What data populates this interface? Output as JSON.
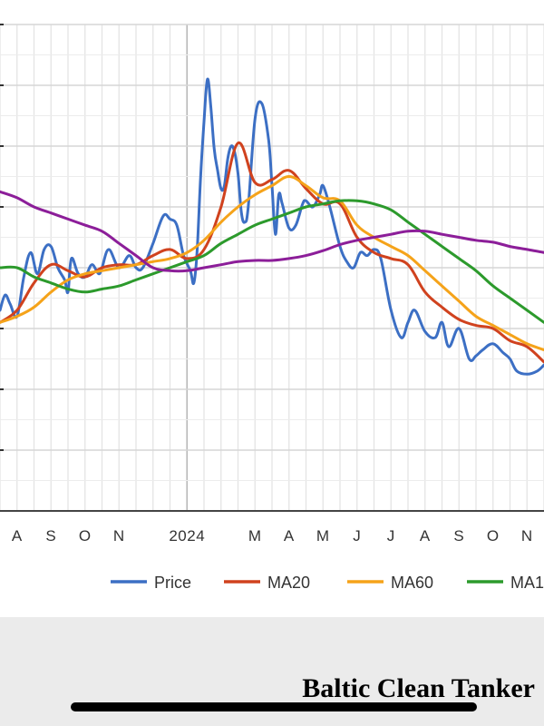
{
  "chart_data": {
    "type": "line",
    "title": "Baltic Clean Tanker",
    "x_tick_labels": [
      "A",
      "S",
      "O",
      "N",
      "2024",
      "M",
      "A",
      "M",
      "J",
      "J",
      "A",
      "S",
      "O",
      "N"
    ],
    "x_tick_positions": [
      1.5,
      2.5,
      3.5,
      4.5,
      6.5,
      8.5,
      9.5,
      10.5,
      11.5,
      12.5,
      13.5,
      14.5,
      15.5,
      16.5
    ],
    "xlim": [
      1.0,
      17.0
    ],
    "ylim": [
      0,
      8
    ],
    "grid": true,
    "legend_position": "bottom",
    "series": [
      {
        "name": "Price",
        "color": "#3c6fc4",
        "x": [
          1.0,
          1.15,
          1.3,
          1.5,
          1.7,
          1.9,
          2.1,
          2.3,
          2.5,
          2.7,
          2.9,
          3.0,
          3.1,
          3.3,
          3.5,
          3.7,
          3.9,
          4.0,
          4.2,
          4.5,
          4.8,
          5.0,
          5.2,
          5.5,
          5.8,
          6.0,
          6.2,
          6.4,
          6.6,
          6.7,
          6.8,
          6.9,
          7.0,
          7.1,
          7.2,
          7.3,
          7.4,
          7.5,
          7.6,
          7.7,
          7.8,
          7.9,
          8.0,
          8.1,
          8.2,
          8.3,
          8.5,
          8.7,
          8.9,
          9.0,
          9.1,
          9.2,
          9.3,
          9.5,
          9.7,
          9.9,
          10.0,
          10.2,
          10.4,
          10.5,
          10.7,
          11.0,
          11.2,
          11.4,
          11.6,
          11.8,
          12.0,
          12.2,
          12.5,
          12.8,
          13.0,
          13.2,
          13.5,
          13.8,
          14.0,
          14.2,
          14.5,
          14.8,
          15.0,
          15.2,
          15.5,
          15.8,
          16.0,
          16.2,
          16.5,
          16.8,
          17.0
        ],
        "values": [
          3.3,
          3.55,
          3.4,
          3.2,
          3.85,
          4.25,
          3.9,
          4.3,
          4.35,
          4.0,
          3.8,
          3.6,
          4.15,
          3.9,
          3.85,
          4.05,
          3.9,
          4.0,
          4.3,
          4.0,
          4.2,
          4.0,
          4.0,
          4.4,
          4.85,
          4.8,
          4.7,
          4.2,
          3.95,
          3.75,
          4.3,
          5.5,
          6.4,
          7.1,
          6.65,
          5.95,
          5.6,
          5.3,
          5.35,
          5.8,
          6.0,
          5.9,
          5.55,
          4.9,
          4.75,
          5.0,
          6.45,
          6.7,
          6.1,
          5.35,
          4.55,
          5.2,
          5.05,
          4.65,
          4.7,
          5.05,
          5.1,
          5.0,
          5.2,
          5.35,
          5.0,
          4.35,
          4.1,
          4.0,
          4.25,
          4.2,
          4.3,
          4.15,
          3.3,
          2.85,
          3.1,
          3.3,
          2.95,
          2.85,
          3.1,
          2.7,
          3.0,
          2.5,
          2.55,
          2.65,
          2.75,
          2.6,
          2.5,
          2.3,
          2.25,
          2.3,
          2.4
        ]
      },
      {
        "name": "MA20",
        "color": "#d0421e",
        "x": [
          1.0,
          1.5,
          2.0,
          2.5,
          3.0,
          3.5,
          4.0,
          4.5,
          5.0,
          5.5,
          6.0,
          6.5,
          7.0,
          7.5,
          8.0,
          8.5,
          9.0,
          9.5,
          10.0,
          10.5,
          11.0,
          11.5,
          12.0,
          12.5,
          13.0,
          13.5,
          14.0,
          14.5,
          15.0,
          15.5,
          16.0,
          16.5,
          17.0
        ],
        "values": [
          3.1,
          3.3,
          3.75,
          4.05,
          3.95,
          3.85,
          4.0,
          4.05,
          4.05,
          4.2,
          4.3,
          4.15,
          4.3,
          5.0,
          6.05,
          5.4,
          5.45,
          5.6,
          5.3,
          5.05,
          5.05,
          4.5,
          4.25,
          4.15,
          4.05,
          3.6,
          3.35,
          3.15,
          3.05,
          3.0,
          2.8,
          2.7,
          2.45
        ]
      },
      {
        "name": "MA60",
        "color": "#f5a31a",
        "x": [
          1.0,
          1.5,
          2.0,
          2.5,
          3.0,
          3.5,
          4.0,
          4.5,
          5.0,
          5.5,
          6.0,
          6.5,
          7.0,
          7.5,
          8.0,
          8.5,
          9.0,
          9.5,
          10.0,
          10.5,
          11.0,
          11.5,
          12.0,
          12.5,
          13.0,
          13.5,
          14.0,
          14.5,
          15.0,
          15.5,
          16.0,
          16.5,
          17.0
        ],
        "values": [
          3.1,
          3.2,
          3.35,
          3.6,
          3.8,
          3.9,
          3.95,
          4.0,
          4.05,
          4.1,
          4.15,
          4.25,
          4.45,
          4.75,
          5.0,
          5.2,
          5.35,
          5.5,
          5.35,
          5.15,
          5.1,
          4.7,
          4.5,
          4.35,
          4.2,
          3.95,
          3.7,
          3.45,
          3.2,
          3.05,
          2.9,
          2.75,
          2.65
        ]
      },
      {
        "name": "MA1",
        "color": "#2c9a2c",
        "x": [
          1.0,
          1.5,
          2.0,
          2.5,
          3.0,
          3.5,
          4.0,
          4.5,
          5.0,
          5.5,
          6.0,
          6.5,
          7.0,
          7.5,
          8.0,
          8.5,
          9.0,
          9.5,
          10.0,
          10.5,
          11.0,
          11.5,
          12.0,
          12.5,
          13.0,
          13.5,
          14.0,
          14.5,
          15.0,
          15.5,
          16.0,
          16.5,
          17.0
        ],
        "values": [
          4.0,
          4.0,
          3.85,
          3.75,
          3.65,
          3.6,
          3.65,
          3.7,
          3.8,
          3.9,
          4.0,
          4.1,
          4.2,
          4.4,
          4.55,
          4.7,
          4.8,
          4.9,
          5.0,
          5.05,
          5.1,
          5.1,
          5.05,
          4.95,
          4.75,
          4.55,
          4.35,
          4.15,
          3.95,
          3.7,
          3.5,
          3.3,
          3.1
        ]
      },
      {
        "name": "",
        "color": "#8c1e99",
        "x": [
          1.0,
          1.5,
          2.0,
          2.5,
          3.0,
          3.5,
          4.0,
          4.5,
          5.0,
          5.5,
          6.0,
          6.5,
          7.0,
          7.5,
          8.0,
          8.5,
          9.0,
          9.5,
          10.0,
          10.5,
          11.0,
          11.5,
          12.0,
          12.5,
          13.0,
          13.5,
          14.0,
          14.5,
          15.0,
          15.5,
          16.0,
          16.5,
          17.0
        ],
        "values": [
          5.25,
          5.15,
          5.0,
          4.9,
          4.8,
          4.7,
          4.6,
          4.4,
          4.2,
          4.0,
          3.95,
          3.95,
          4.0,
          4.05,
          4.1,
          4.12,
          4.12,
          4.15,
          4.2,
          4.28,
          4.38,
          4.45,
          4.5,
          4.55,
          4.6,
          4.6,
          4.55,
          4.5,
          4.45,
          4.42,
          4.35,
          4.3,
          4.25
        ]
      }
    ],
    "legend": [
      "Price",
      "MA20",
      "MA60",
      "MA1"
    ]
  }
}
